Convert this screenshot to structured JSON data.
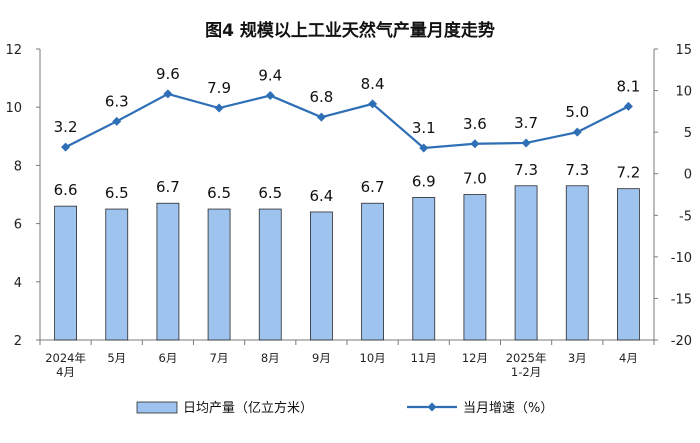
{
  "chart_data": {
    "type": "bar",
    "title": "图4  规模以上工业天然气产量月度走势",
    "categories": [
      [
        "2024年",
        "4月"
      ],
      [
        "5月"
      ],
      [
        "6月"
      ],
      [
        "7月"
      ],
      [
        "8月"
      ],
      [
        "9月"
      ],
      [
        "10月"
      ],
      [
        "11月"
      ],
      [
        "12月"
      ],
      [
        "2025年",
        "1-2月"
      ],
      [
        "3月"
      ],
      [
        "4月"
      ]
    ],
    "series": [
      {
        "name": "日均产量（亿立方米）",
        "type": "bar",
        "axis": "left",
        "color": "#9dc3ee",
        "values": [
          6.6,
          6.5,
          6.7,
          6.5,
          6.5,
          6.4,
          6.7,
          6.9,
          7.0,
          7.3,
          7.3,
          7.2
        ],
        "labels": [
          "6.6",
          "6.5",
          "6.7",
          "6.5",
          "6.5",
          "6.4",
          "6.7",
          "6.9",
          "7.0",
          "7.3",
          "7.3",
          "7.2"
        ]
      },
      {
        "name": "当月增速（%）",
        "type": "line",
        "axis": "right",
        "color": "#2e6fb5",
        "values": [
          3.2,
          6.3,
          9.6,
          7.9,
          9.4,
          6.8,
          8.4,
          3.1,
          3.6,
          3.7,
          5.0,
          8.1
        ],
        "labels": [
          "3.2",
          "6.3",
          "9.6",
          "7.9",
          "9.4",
          "6.8",
          "8.4",
          "3.1",
          "3.6",
          "3.7",
          "5.0",
          "8.1"
        ]
      }
    ],
    "y_left": {
      "lim": [
        2,
        12
      ],
      "ticks": [
        "2",
        "4",
        "6",
        "8",
        "10",
        "12"
      ]
    },
    "y_right": {
      "lim": [
        -20,
        15
      ],
      "ticks": [
        "-20",
        "-15",
        "-10",
        "-5",
        "0",
        "5",
        "10",
        "15"
      ]
    },
    "grid": false,
    "legend_position": "bottom"
  }
}
